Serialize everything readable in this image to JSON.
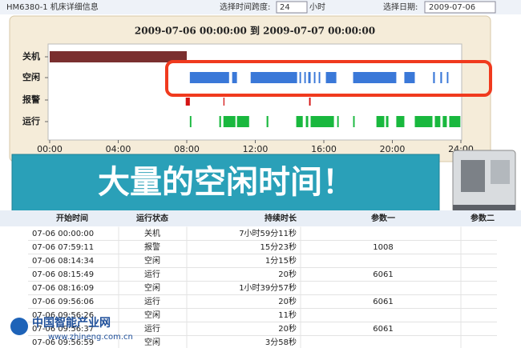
{
  "header": {
    "title": "HM6380-1 机床详细信息",
    "span_label": "选择时间跨度:",
    "span_value": "24",
    "span_unit": "小时",
    "date_label": "选择日期:",
    "date_value": "2009-07-06"
  },
  "chart_data": {
    "type": "timeline",
    "title": "2009-07-06 00:00:00 到 2009-07-07 00:00:00",
    "xlim": [
      0,
      24
    ],
    "xticks": [
      {
        "value": 0,
        "label": "00:00"
      },
      {
        "value": 4,
        "label": "04:00"
      },
      {
        "value": 8,
        "label": "08:00"
      },
      {
        "value": 12,
        "label": "12:00"
      },
      {
        "value": 16,
        "label": "16:00"
      },
      {
        "value": 20,
        "label": "20:00"
      },
      {
        "value": 24,
        "label": "24:00"
      }
    ],
    "series": [
      {
        "name": "关机",
        "color": "#7a2f2f",
        "intervals": [
          [
            0,
            8.0
          ]
        ]
      },
      {
        "name": "空闲",
        "color": "#3a78d8",
        "intervals": [
          [
            8.18,
            10.47
          ],
          [
            10.65,
            10.93
          ],
          [
            11.73,
            14.44
          ],
          [
            14.58,
            14.67
          ],
          [
            14.86,
            14.95
          ],
          [
            15.09,
            15.23
          ],
          [
            15.42,
            15.51
          ],
          [
            15.7,
            15.79
          ],
          [
            16.12,
            16.73
          ],
          [
            17.71,
            20.23
          ],
          [
            20.7,
            21.31
          ],
          [
            22.38,
            22.48
          ],
          [
            22.8,
            22.9
          ],
          [
            23.18,
            23.27
          ]
        ]
      },
      {
        "name": "报警",
        "color": "#d41414",
        "intervals": [
          [
            7.94,
            8.18
          ],
          [
            10.14,
            10.2
          ],
          [
            15.14,
            15.23
          ]
        ]
      },
      {
        "name": "运行",
        "color": "#19b83e",
        "intervals": [
          [
            8.18,
            8.27
          ],
          [
            9.9,
            10.0
          ],
          [
            10.14,
            10.84
          ],
          [
            10.93,
            11.64
          ],
          [
            12.66,
            12.76
          ],
          [
            14.39,
            14.77
          ],
          [
            14.95,
            15.09
          ],
          [
            15.23,
            16.59
          ],
          [
            16.78,
            16.87
          ],
          [
            17.71,
            17.8
          ],
          [
            19.07,
            19.53
          ],
          [
            19.63,
            19.77
          ],
          [
            20.23,
            20.7
          ],
          [
            21.31,
            22.34
          ],
          [
            22.48,
            22.8
          ],
          [
            22.94,
            23.18
          ],
          [
            23.32,
            23.97
          ]
        ]
      }
    ]
  },
  "banner": {
    "text": "大量的空闲时间！"
  },
  "table": {
    "columns": [
      "开始时间",
      "运行状态",
      "持续时长",
      "参数一",
      "参数二"
    ],
    "rows": [
      [
        "07-06 00:00:00",
        "关机",
        "7小时59分11秒"
      ],
      [
        "07-06 07:59:11",
        "报警",
        "15分23秒",
        "1008"
      ],
      [
        "07-06 08:14:34",
        "空闲",
        "1分15秒"
      ],
      [
        "07-06 08:15:49",
        "运行",
        "20秒",
        "6061"
      ],
      [
        "07-06 08:16:09",
        "空闲",
        "1小时39分57秒"
      ],
      [
        "07-06 09:56:06",
        "运行",
        "20秒",
        "6061"
      ],
      [
        "07-06 09:56:26",
        "空闲",
        "11秒"
      ],
      [
        "07-06 09:56:37",
        "运行",
        "20秒",
        "6061"
      ],
      [
        "07-06 09:56:59",
        "空闲",
        "3分58秒"
      ]
    ]
  },
  "watermark": {
    "name": "中国智能产业网",
    "url": "www.zhineng.com.cn"
  }
}
